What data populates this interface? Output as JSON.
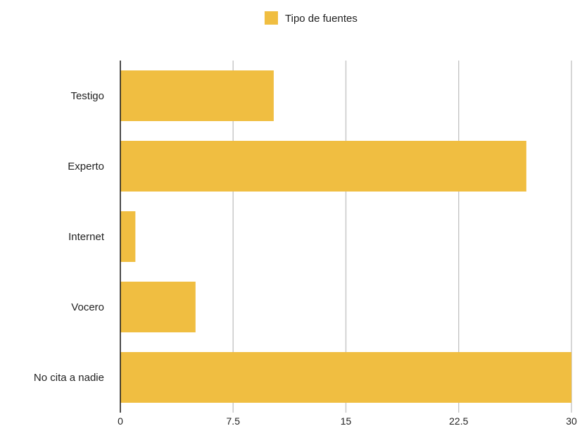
{
  "chart_data": {
    "type": "bar",
    "orientation": "horizontal",
    "categories": [
      "Testigo",
      "Experto",
      "Internet",
      "Vocero",
      "No cita a nadie"
    ],
    "series": [
      {
        "name": "Tipo de fuentes",
        "values": [
          10.2,
          27,
          1,
          5,
          30
        ],
        "color": "#F0BE41"
      }
    ],
    "xlim": [
      0,
      30
    ],
    "xticks": [
      0,
      7.5,
      15,
      22.5,
      30
    ],
    "xtick_labels": [
      "0",
      "7.5",
      "15",
      "22.5",
      "30"
    ],
    "grid": true,
    "legend_position": "top-center",
    "title": "",
    "xlabel": "",
    "ylabel": ""
  }
}
